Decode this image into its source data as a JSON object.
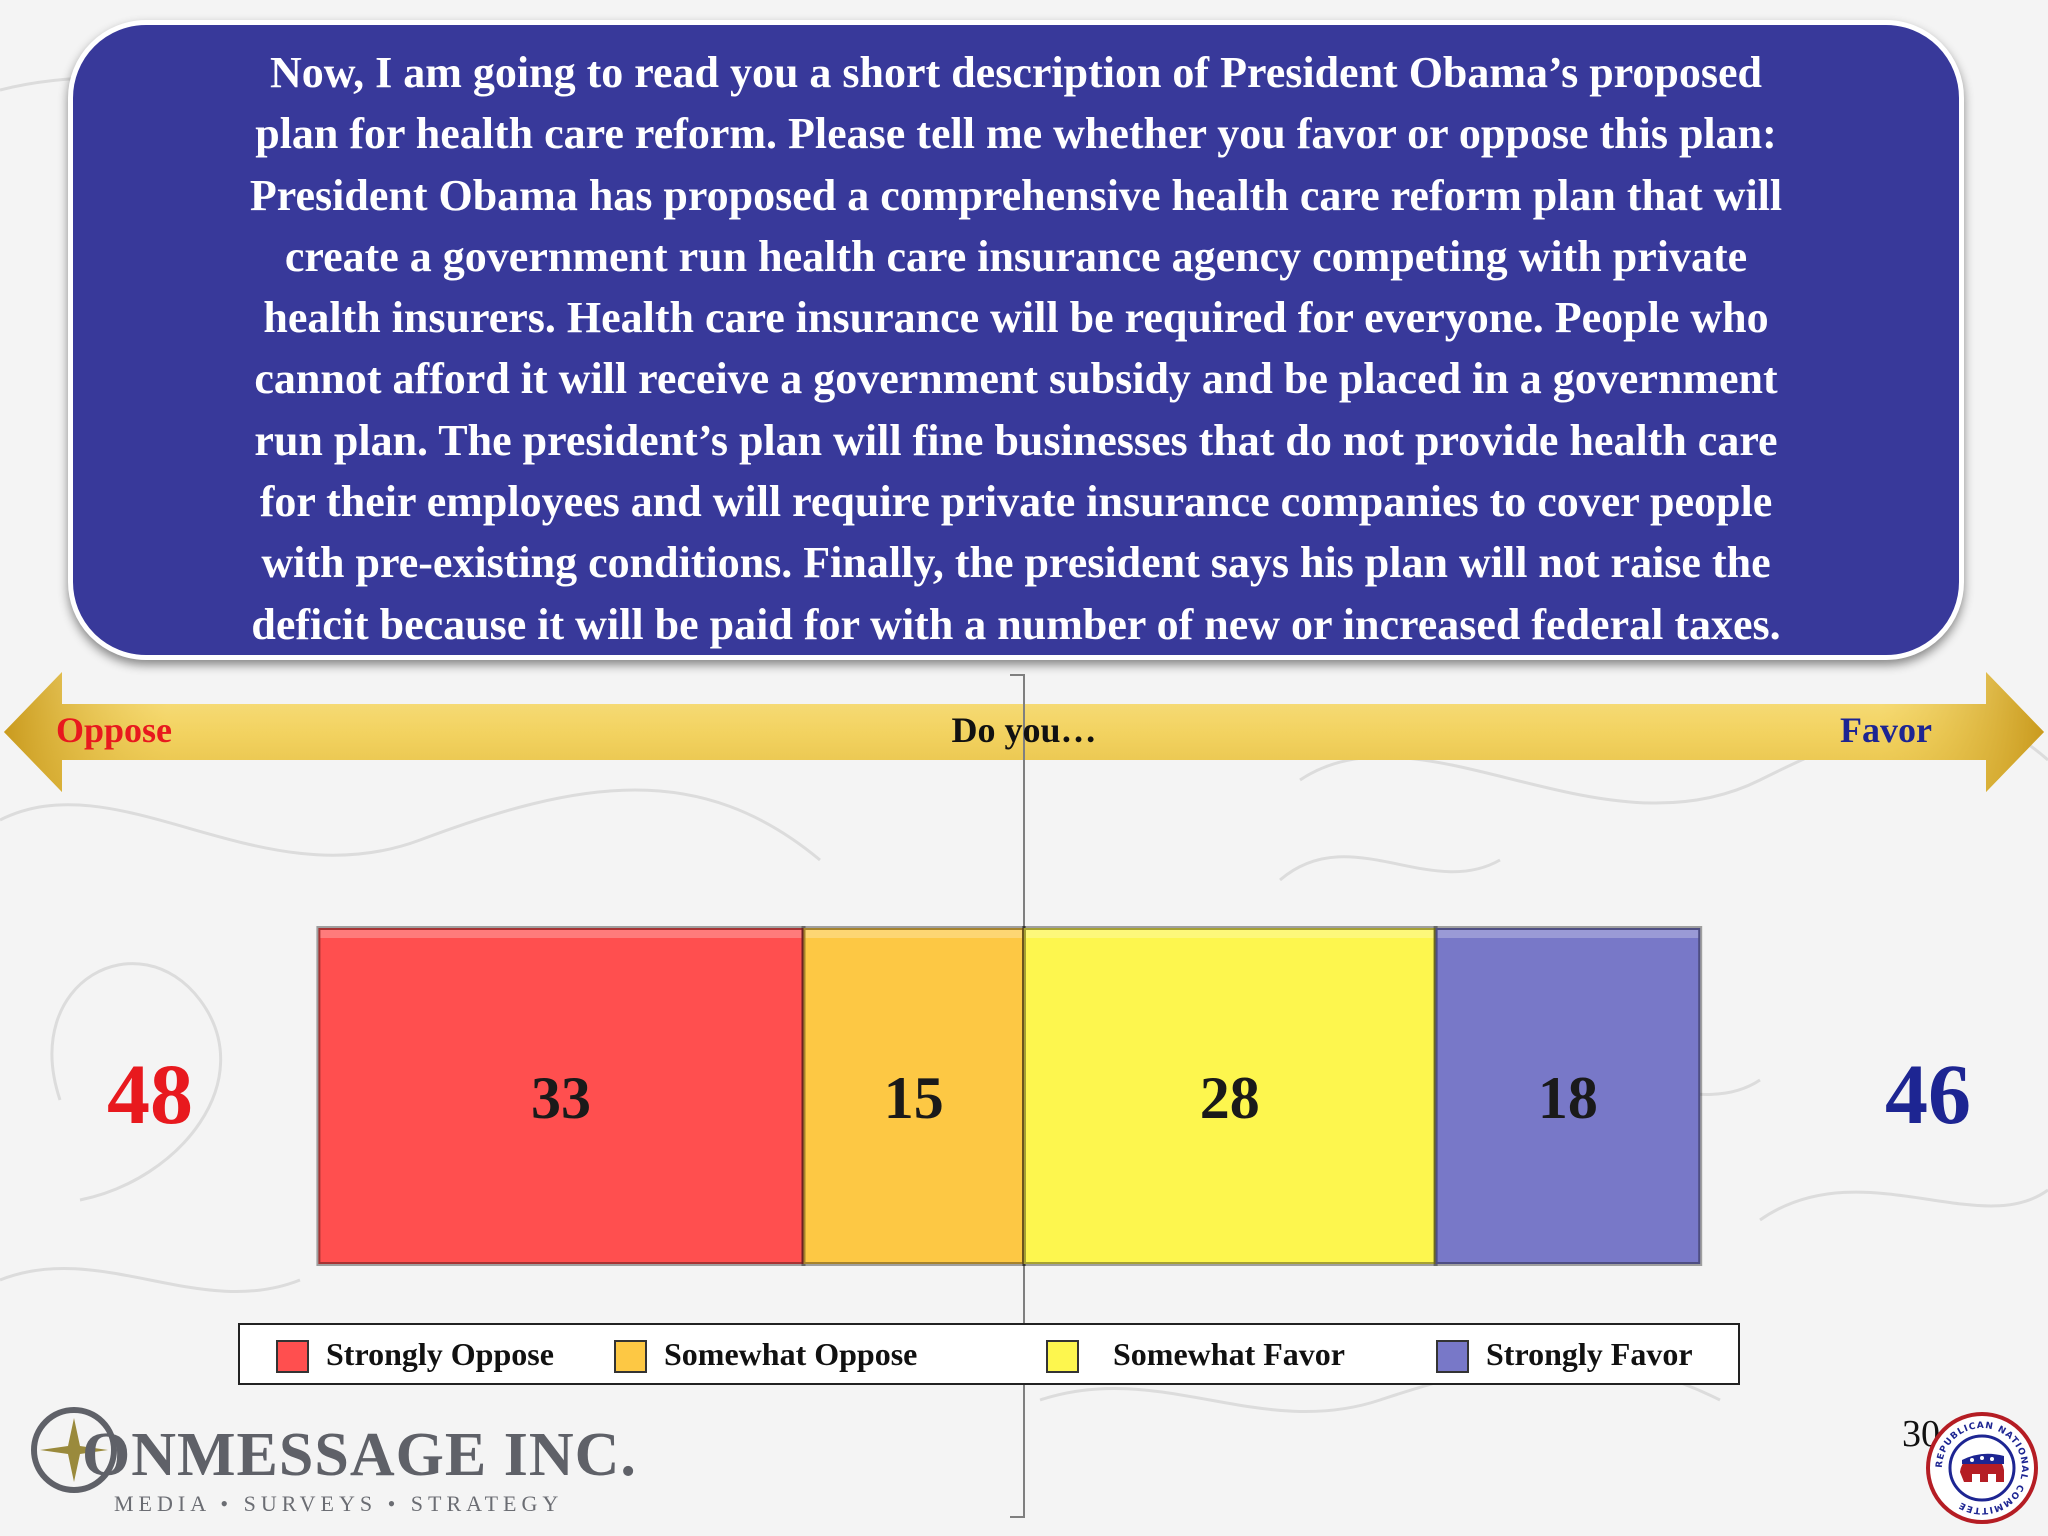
{
  "question": {
    "lines": [
      "Now, I am going to read you a short description of President Obama’s proposed",
      "plan for health care reform.  Please tell me whether you favor or oppose this plan:",
      "President Obama has proposed a comprehensive health care reform plan that will",
      "create a government run health care insurance agency competing with private",
      "health insurers.  Health care insurance will be required for everyone.  People who",
      "cannot afford it will receive a government subsidy and be placed in a government",
      "run plan.  The president’s plan will fine businesses that do not provide health care",
      "for their employees and will require private insurance companies to cover people",
      "with pre-existing conditions.   Finally, the president says his plan will not raise the",
      "deficit because it will be paid for with a number of new or increased federal taxes."
    ]
  },
  "scale": {
    "left_label": "Oppose",
    "middle_label": "Do you…",
    "right_label": "Favor"
  },
  "totals": {
    "oppose": "48",
    "favor": "46"
  },
  "chart_data": {
    "type": "bar",
    "orientation": "horizontal-stacked",
    "categories": [
      "Do you…"
    ],
    "series": [
      {
        "name": "Strongly Oppose",
        "values": [
          33
        ],
        "color": "#ff4f4f"
      },
      {
        "name": "Somewhat Oppose",
        "values": [
          15
        ],
        "color": "#fdc844"
      },
      {
        "name": "Somewhat Favor",
        "values": [
          28
        ],
        "color": "#fdf64e"
      },
      {
        "name": "Strongly Favor",
        "values": [
          18
        ],
        "color": "#7878c8"
      }
    ],
    "diverging_center_after": "Somewhat Oppose",
    "legend_position": "bottom",
    "grid": false
  },
  "logo": {
    "wordmark": "ONMESSAGE INC.",
    "tagline": "MEDIA • SURVEYS • STRATEGY"
  },
  "seal": {
    "text": "REPUBLICAN NATIONAL COMMITTEE"
  },
  "page_number": "30",
  "colors": {
    "question_bg": "#38399a",
    "oppose_red": "#e8191e",
    "favor_blue": "#1d2592",
    "arrow_gold": "#e8c24a"
  }
}
